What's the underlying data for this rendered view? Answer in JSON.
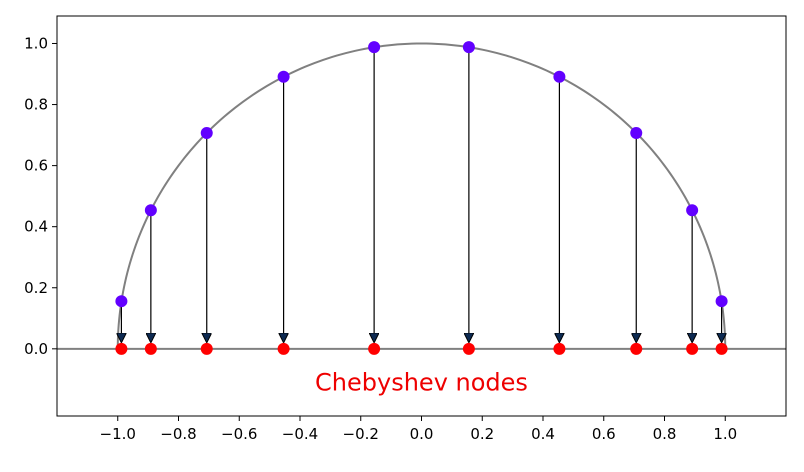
{
  "chart_data": {
    "type": "scatter",
    "title": "",
    "xlabel": "",
    "ylabel": "",
    "xlim": [
      -1.2,
      1.2
    ],
    "ylim": [
      -0.22,
      1.09
    ],
    "grid": false,
    "x_ticks": [
      -1.0,
      -0.8,
      -0.6,
      -0.4,
      -0.2,
      0.0,
      0.2,
      0.4,
      0.6,
      0.8,
      1.0
    ],
    "x_tick_labels": [
      "−1.0",
      "−0.8",
      "−0.6",
      "−0.4",
      "−0.2",
      "0.0",
      "0.2",
      "0.4",
      "0.6",
      "0.8",
      "1.0"
    ],
    "y_ticks": [
      0.0,
      0.2,
      0.4,
      0.6,
      0.8,
      1.0
    ],
    "y_tick_labels": [
      "0.0",
      "0.2",
      "0.4",
      "0.6",
      "0.8",
      "1.0"
    ],
    "colors": {
      "circle": "#808080",
      "circle_points": "#6200ff",
      "nodes": "#ff0000",
      "arrow_head": "#0d2a52",
      "annotation": "#ee0000"
    },
    "circle_points": {
      "x": [
        0.988,
        0.891,
        0.707,
        0.454,
        0.156,
        -0.156,
        -0.454,
        -0.707,
        -0.891,
        -0.988
      ],
      "y": [
        0.156,
        0.454,
        0.707,
        0.891,
        0.988,
        0.988,
        0.891,
        0.707,
        0.454,
        0.156
      ]
    },
    "nodes": {
      "x": [
        0.988,
        0.891,
        0.707,
        0.454,
        0.156,
        -0.156,
        -0.454,
        -0.707,
        -0.891,
        -0.988
      ],
      "y": [
        0,
        0,
        0,
        0,
        0,
        0,
        0,
        0,
        0,
        0
      ]
    },
    "annotation": {
      "text": "Chebyshev nodes",
      "x": 0.0,
      "y": -0.11
    }
  }
}
